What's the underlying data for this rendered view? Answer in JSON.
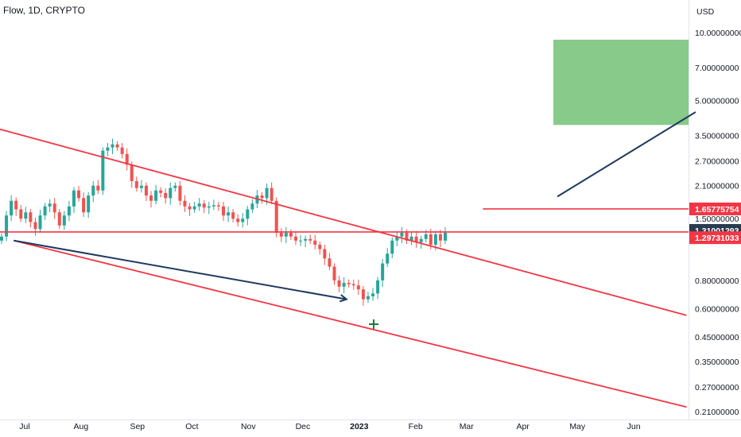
{
  "header": {
    "symbol": "Flow, 1D, CRYPTO"
  },
  "colors": {
    "up": "#26a69a",
    "down": "#ef5350",
    "trendline": "#f23645",
    "arrow": "#1e3a5f",
    "target_zone": "#81c784",
    "price_tag_red": "#f23645",
    "price_tag_dark": "#2a3a4f",
    "marker": "#1b7a3c"
  },
  "chart_data": {
    "type": "candlestick",
    "y_scale": "log",
    "y_unit_label": "USD",
    "y_ticks": [
      "10.00000000",
      "7.00000000",
      "5.00000000",
      "3.50000000",
      "2.70000000",
      "2.10000000",
      "1.50000000",
      "0.80000000",
      "0.60000000",
      "0.45000000",
      "0.35000000",
      "0.27000000",
      "0.21000000"
    ],
    "x_ticks": [
      "Jul",
      "Aug",
      "Sep",
      "Oct",
      "Nov",
      "Dec",
      "2023",
      "Feb",
      "Mar",
      "Apr",
      "May",
      "Jun"
    ],
    "ylim": [
      0.21,
      10.0
    ],
    "price_tags": [
      {
        "value": "1.65775754",
        "style": "red"
      },
      {
        "value": "1.31001293",
        "style": "dark"
      },
      {
        "value": "1.29731033",
        "style": "red"
      }
    ],
    "series_close": [
      1.25,
      1.55,
      1.8,
      1.65,
      1.5,
      1.6,
      1.45,
      1.35,
      1.55,
      1.7,
      1.75,
      1.6,
      1.4,
      1.55,
      1.7,
      2.0,
      1.85,
      1.6,
      1.9,
      2.1,
      2.0,
      3.0,
      3.1,
      3.2,
      3.1,
      2.9,
      2.6,
      2.2,
      2.05,
      2.1,
      1.9,
      1.8,
      2.0,
      1.95,
      1.85,
      2.05,
      2.1,
      1.8,
      1.7,
      1.65,
      1.7,
      1.75,
      1.68,
      1.7,
      1.72,
      1.7,
      1.55,
      1.6,
      1.5,
      1.45,
      1.5,
      1.65,
      1.75,
      1.9,
      1.85,
      2.05,
      1.8,
      1.3,
      1.25,
      1.3,
      1.25,
      1.2,
      1.2,
      1.22,
      1.2,
      1.15,
      1.1,
      1.0,
      0.92,
      0.8,
      0.75,
      0.78,
      0.77,
      0.76,
      0.73,
      0.66,
      0.68,
      0.7,
      0.8,
      0.95,
      1.05,
      1.2,
      1.25,
      1.3,
      1.2,
      1.25,
      1.18,
      1.22,
      1.28,
      1.15,
      1.28,
      1.2,
      1.3
    ],
    "lines": [
      {
        "kind": "trendline",
        "color": "red",
        "from": [
          "2022-05-25",
          4.2
        ],
        "to": [
          "2023-06-30",
          0.56
        ]
      },
      {
        "kind": "trendline",
        "color": "red",
        "from": [
          "2022-06-25",
          1.2
        ],
        "to": [
          "2023-06-30",
          0.22
        ]
      },
      {
        "kind": "horizontal",
        "color": "red",
        "value": 1.31
      },
      {
        "kind": "horizontal",
        "color": "red",
        "value": 1.657,
        "from": "2023-03-10"
      },
      {
        "kind": "arrow",
        "color": "navy",
        "from": [
          "2022-06-25",
          1.2
        ],
        "to": [
          "2022-12-25",
          0.66
        ]
      },
      {
        "kind": "arrow",
        "color": "navy",
        "from": [
          "2023-04-20",
          1.88
        ],
        "to": [
          "2023-07-05",
          4.45
        ]
      }
    ],
    "target_zone": {
      "low": 3.9,
      "high": 9.3
    },
    "grid": false,
    "legend": "none"
  }
}
